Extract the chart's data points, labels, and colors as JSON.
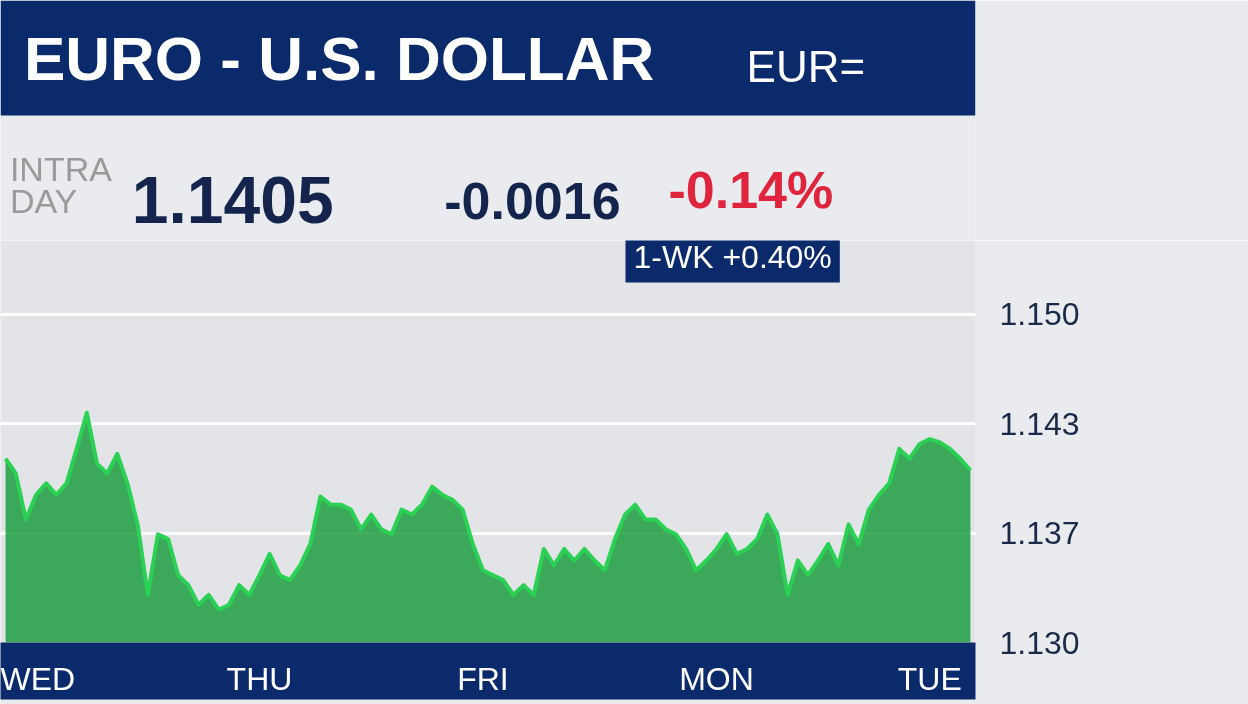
{
  "chart_data": {
    "type": "area",
    "title": "EURO - U.S. DOLLAR",
    "subtitle": "EUR=",
    "annotations": [
      "INTRA DAY",
      "1.1405",
      "-0.0016",
      "-0.14%",
      "1-WK +0.40%"
    ],
    "categories": [
      null,
      null,
      null,
      "WED",
      null,
      null,
      null,
      null,
      null,
      null,
      null,
      null,
      null,
      null,
      null,
      null,
      null,
      null,
      null,
      null,
      null,
      null,
      null,
      null,
      null,
      "THU",
      null,
      null,
      null,
      null,
      null,
      null,
      null,
      null,
      null,
      null,
      null,
      null,
      null,
      null,
      null,
      null,
      null,
      null,
      null,
      null,
      null,
      "FRI",
      null,
      null,
      null,
      null,
      null,
      null,
      null,
      null,
      null,
      null,
      null,
      null,
      null,
      null,
      null,
      null,
      null,
      null,
      null,
      null,
      null,
      null,
      "MON",
      null,
      null,
      null,
      null,
      null,
      null,
      null,
      null,
      null,
      null,
      null,
      null,
      null,
      null,
      null,
      null,
      null,
      null,
      null,
      null,
      "TUE",
      null,
      null,
      null,
      null
    ],
    "series": [
      {
        "color": "#1f9d3f",
        "values": [
          1.1412,
          1.1403,
          1.1375,
          1.139,
          1.1397,
          1.139,
          1.1397,
          1.1418,
          1.144,
          1.1409,
          1.1403,
          1.1415,
          1.1397,
          1.1372,
          1.1329,
          1.1366,
          1.1363,
          1.1341,
          1.1335,
          1.1323,
          1.1329,
          1.132,
          1.1323,
          1.1335,
          1.1329,
          1.1341,
          1.1354,
          1.1341,
          1.1338,
          1.1347,
          1.136,
          1.1389,
          1.1384,
          1.1384,
          1.1381,
          1.1369,
          1.1378,
          1.1369,
          1.1366,
          1.1381,
          1.1378,
          1.1384,
          1.1395,
          1.139,
          1.1387,
          1.1381,
          1.136,
          1.1344,
          1.1341,
          1.1338,
          1.1329,
          1.1335,
          1.1329,
          1.1357,
          1.1347,
          1.1357,
          1.135,
          1.1357,
          1.135,
          1.1344,
          1.1363,
          1.1378,
          1.1384,
          1.1375,
          1.1375,
          1.1369,
          1.1366,
          1.1357,
          1.1344,
          1.135,
          1.1357,
          1.1366,
          1.1354,
          1.1357,
          1.1363,
          1.1378,
          1.1366,
          1.1329,
          1.135,
          1.1341,
          1.135,
          1.136,
          1.1347,
          1.1372,
          1.136,
          1.1381,
          1.139,
          1.1397,
          1.1418,
          1.1412,
          1.1421,
          1.1424,
          1.1422,
          1.1418,
          1.1412,
          1.1405
        ]
      }
    ],
    "ylim": [
      1.13,
      1.1545
    ],
    "yticks": [
      {
        "value": 1.13,
        "label": "1.130"
      },
      {
        "value": 1.13667,
        "label": "1.137"
      },
      {
        "value": 1.14333,
        "label": "1.143"
      },
      {
        "value": 1.15,
        "label": "1.150"
      }
    ],
    "grid": "y"
  }
}
